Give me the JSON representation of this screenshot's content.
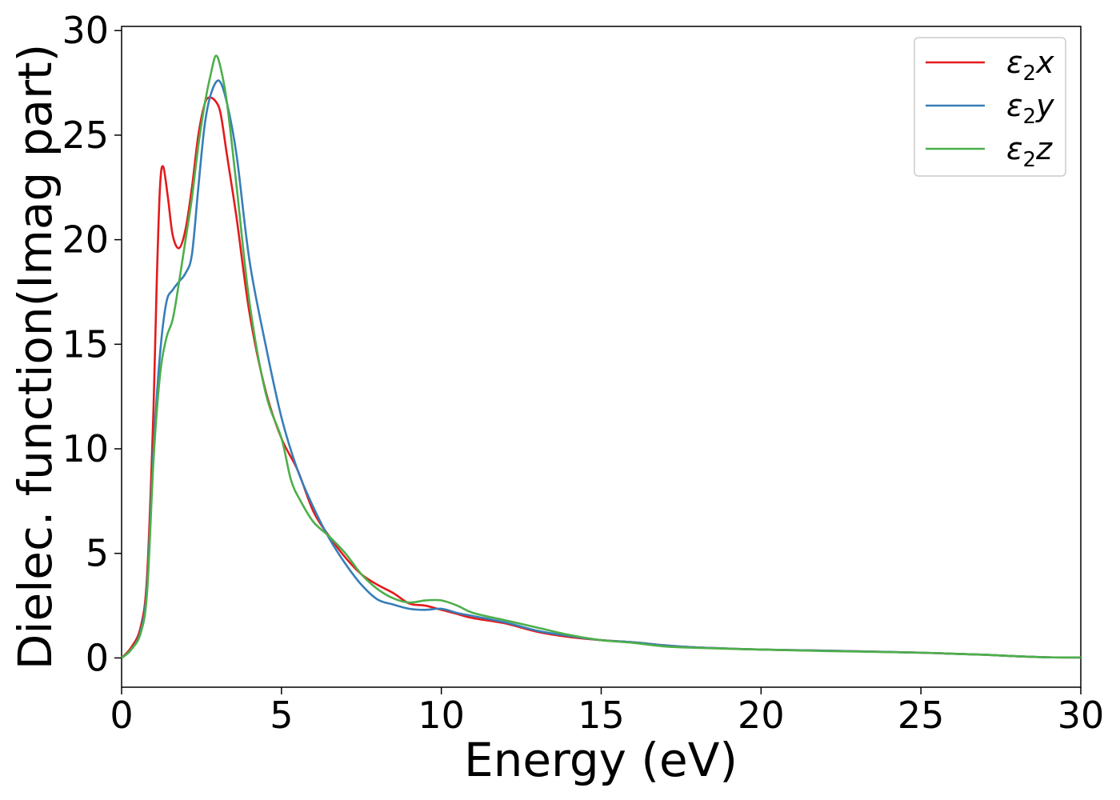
{
  "chart_data": {
    "type": "line",
    "xlabel": "Energy (eV)",
    "ylabel": "Dielec. function(Imag part)",
    "xlim": [
      0,
      30
    ],
    "ylim": [
      -1.4,
      30.2
    ],
    "xticks": [
      0,
      5,
      10,
      15,
      20,
      25,
      30
    ],
    "yticks": [
      0,
      5,
      10,
      15,
      20,
      25,
      30
    ],
    "grid": false,
    "legend_position": "top-right",
    "series": [
      {
        "name": "ε2x",
        "legend_main": "ε",
        "legend_sub": "2",
        "legend_suffix": "x",
        "color": "#e41a1c",
        "points": [
          [
            0,
            0
          ],
          [
            0.3,
            0.5
          ],
          [
            0.6,
            1.5
          ],
          [
            0.8,
            4
          ],
          [
            1.0,
            12
          ],
          [
            1.1,
            18
          ],
          [
            1.2,
            22.5
          ],
          [
            1.3,
            23.5
          ],
          [
            1.45,
            22
          ],
          [
            1.6,
            20.2
          ],
          [
            1.8,
            19.6
          ],
          [
            2.0,
            20.5
          ],
          [
            2.2,
            22.5
          ],
          [
            2.4,
            25
          ],
          [
            2.6,
            26.5
          ],
          [
            2.75,
            26.8
          ],
          [
            2.95,
            26.6
          ],
          [
            3.1,
            26
          ],
          [
            3.3,
            24
          ],
          [
            3.6,
            21
          ],
          [
            4.0,
            16.5
          ],
          [
            4.5,
            12.8
          ],
          [
            5.0,
            10.5
          ],
          [
            5.5,
            9
          ],
          [
            6.0,
            7
          ],
          [
            6.5,
            5.8
          ],
          [
            7.0,
            4.8
          ],
          [
            7.5,
            4
          ],
          [
            8.0,
            3.5
          ],
          [
            8.5,
            3.1
          ],
          [
            9.0,
            2.6
          ],
          [
            9.5,
            2.5
          ],
          [
            10.0,
            2.3
          ],
          [
            10.5,
            2.1
          ],
          [
            11.0,
            1.9
          ],
          [
            12.0,
            1.65
          ],
          [
            13.0,
            1.25
          ],
          [
            14.0,
            1.0
          ],
          [
            15.0,
            0.85
          ],
          [
            16.0,
            0.75
          ],
          [
            17.0,
            0.6
          ],
          [
            18.0,
            0.5
          ],
          [
            20.0,
            0.4
          ],
          [
            22.0,
            0.35
          ],
          [
            25.0,
            0.25
          ],
          [
            26.0,
            0.2
          ],
          [
            27.0,
            0.15
          ],
          [
            28.0,
            0.08
          ],
          [
            29.0,
            0.03
          ],
          [
            30.0,
            0.02
          ]
        ]
      },
      {
        "name": "ε2y",
        "legend_main": "ε",
        "legend_sub": "2",
        "legend_suffix": "y",
        "color": "#377eb8",
        "points": [
          [
            0,
            0
          ],
          [
            0.3,
            0.4
          ],
          [
            0.6,
            1.3
          ],
          [
            0.8,
            3.5
          ],
          [
            1.0,
            10
          ],
          [
            1.2,
            14.5
          ],
          [
            1.4,
            17
          ],
          [
            1.6,
            17.6
          ],
          [
            1.8,
            18
          ],
          [
            2.0,
            18.4
          ],
          [
            2.2,
            19.3
          ],
          [
            2.4,
            22.5
          ],
          [
            2.6,
            25.5
          ],
          [
            2.8,
            27
          ],
          [
            3.05,
            27.6
          ],
          [
            3.3,
            26.5
          ],
          [
            3.6,
            24
          ],
          [
            4.0,
            19
          ],
          [
            4.5,
            15
          ],
          [
            5.0,
            11.5
          ],
          [
            5.5,
            9
          ],
          [
            6.0,
            7.2
          ],
          [
            6.5,
            5.7
          ],
          [
            7.0,
            4.5
          ],
          [
            7.5,
            3.5
          ],
          [
            8.0,
            2.8
          ],
          [
            8.5,
            2.55
          ],
          [
            9.0,
            2.35
          ],
          [
            9.5,
            2.3
          ],
          [
            10.0,
            2.35
          ],
          [
            10.5,
            2.15
          ],
          [
            11.0,
            2.0
          ],
          [
            12.0,
            1.7
          ],
          [
            13.0,
            1.3
          ],
          [
            14.0,
            1.05
          ],
          [
            15.0,
            0.85
          ],
          [
            16.0,
            0.75
          ],
          [
            17.0,
            0.6
          ],
          [
            18.0,
            0.5
          ],
          [
            20.0,
            0.4
          ],
          [
            22.0,
            0.35
          ],
          [
            25.0,
            0.25
          ],
          [
            26.0,
            0.2
          ],
          [
            27.0,
            0.15
          ],
          [
            28.0,
            0.08
          ],
          [
            29.0,
            0.03
          ],
          [
            30.0,
            0.02
          ]
        ]
      },
      {
        "name": "ε2z",
        "legend_main": "ε",
        "legend_sub": "2",
        "legend_suffix": "z",
        "color": "#4daf4a",
        "points": [
          [
            0,
            0
          ],
          [
            0.3,
            0.4
          ],
          [
            0.6,
            1.2
          ],
          [
            0.8,
            3.2
          ],
          [
            1.0,
            9.5
          ],
          [
            1.2,
            13.5
          ],
          [
            1.4,
            15.3
          ],
          [
            1.6,
            16.2
          ],
          [
            1.8,
            18
          ],
          [
            2.0,
            20
          ],
          [
            2.2,
            22
          ],
          [
            2.4,
            24.5
          ],
          [
            2.6,
            26.5
          ],
          [
            2.8,
            28
          ],
          [
            2.95,
            28.8
          ],
          [
            3.1,
            28.2
          ],
          [
            3.3,
            26.5
          ],
          [
            3.6,
            22.5
          ],
          [
            4.0,
            17
          ],
          [
            4.5,
            12.7
          ],
          [
            5.0,
            10.5
          ],
          [
            5.3,
            8.5
          ],
          [
            5.6,
            7.5
          ],
          [
            6.0,
            6.5
          ],
          [
            6.5,
            5.8
          ],
          [
            7.0,
            5.0
          ],
          [
            7.5,
            4.0
          ],
          [
            8.0,
            3.3
          ],
          [
            8.5,
            2.85
          ],
          [
            9.0,
            2.65
          ],
          [
            9.5,
            2.75
          ],
          [
            10.0,
            2.75
          ],
          [
            10.5,
            2.5
          ],
          [
            11.0,
            2.15
          ],
          [
            12.0,
            1.8
          ],
          [
            13.0,
            1.45
          ],
          [
            14.0,
            1.1
          ],
          [
            15.0,
            0.85
          ],
          [
            16.0,
            0.72
          ],
          [
            17.0,
            0.55
          ],
          [
            18.0,
            0.48
          ],
          [
            20.0,
            0.4
          ],
          [
            22.0,
            0.33
          ],
          [
            25.0,
            0.25
          ],
          [
            26.0,
            0.2
          ],
          [
            27.0,
            0.15
          ],
          [
            28.0,
            0.08
          ],
          [
            29.0,
            0.03
          ],
          [
            30.0,
            0.02
          ]
        ]
      }
    ]
  }
}
